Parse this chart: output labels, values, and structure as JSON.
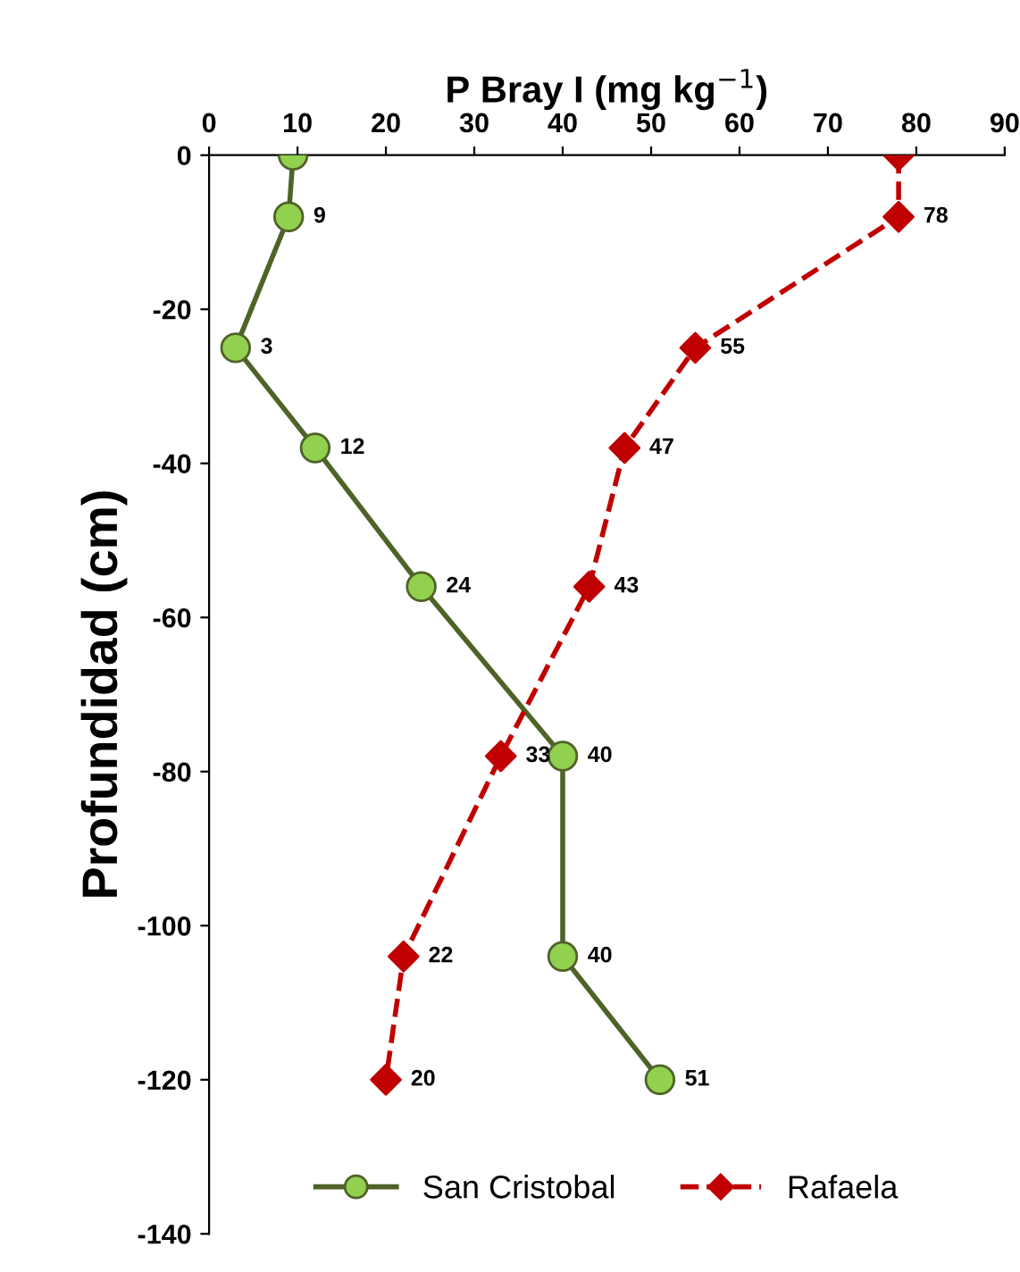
{
  "chart_data": {
    "type": "line",
    "xlabel": "P Bray I (mg kg$^{−1}$)",
    "ylabel": "Profundidad (cm)",
    "xlim": [
      0,
      90
    ],
    "xticks": [
      0,
      10,
      20,
      30,
      40,
      50,
      60,
      70,
      80,
      90
    ],
    "ylim": [
      -140,
      0
    ],
    "yticks": [
      -140,
      -120,
      -100,
      -80,
      -60,
      -40,
      -20,
      0
    ],
    "grid": false,
    "legend": "bottom",
    "orientation": "horizontal",
    "series": [
      {
        "name": "San Cristobal",
        "color": "#4f6228",
        "colors": [
          "#92d050",
          "#92d050",
          "#92d050",
          "#92d050",
          "#92d050",
          "#92d050",
          "#92d050",
          "#92d050"
        ],
        "marker": "circle",
        "line_style": "solid",
        "x": [
          0,
          -8,
          -25,
          -38,
          -56,
          -78,
          -104,
          -120
        ],
        "values": [
          9.5,
          9,
          3,
          12,
          24,
          40,
          40,
          51
        ],
        "value_labels": [
          null,
          "9",
          "3",
          "12",
          "24",
          "40",
          "40",
          "51"
        ]
      },
      {
        "name": "Rafaela",
        "color": "#c00000",
        "colors": [
          "#c00000",
          "#c00000",
          "#c00000",
          "#c00000",
          "#c00000",
          "#c00000",
          "#c00000",
          "#c00000"
        ],
        "marker": "diamond",
        "line_style": "dashed",
        "x": [
          0,
          -8,
          -25,
          -38,
          -56,
          -78,
          -104,
          -120
        ],
        "values": [
          78,
          78,
          55,
          47,
          43,
          33,
          22,
          20
        ],
        "value_labels": [
          null,
          "78",
          "55",
          "47",
          "43",
          "33",
          "22",
          "20"
        ]
      }
    ]
  }
}
